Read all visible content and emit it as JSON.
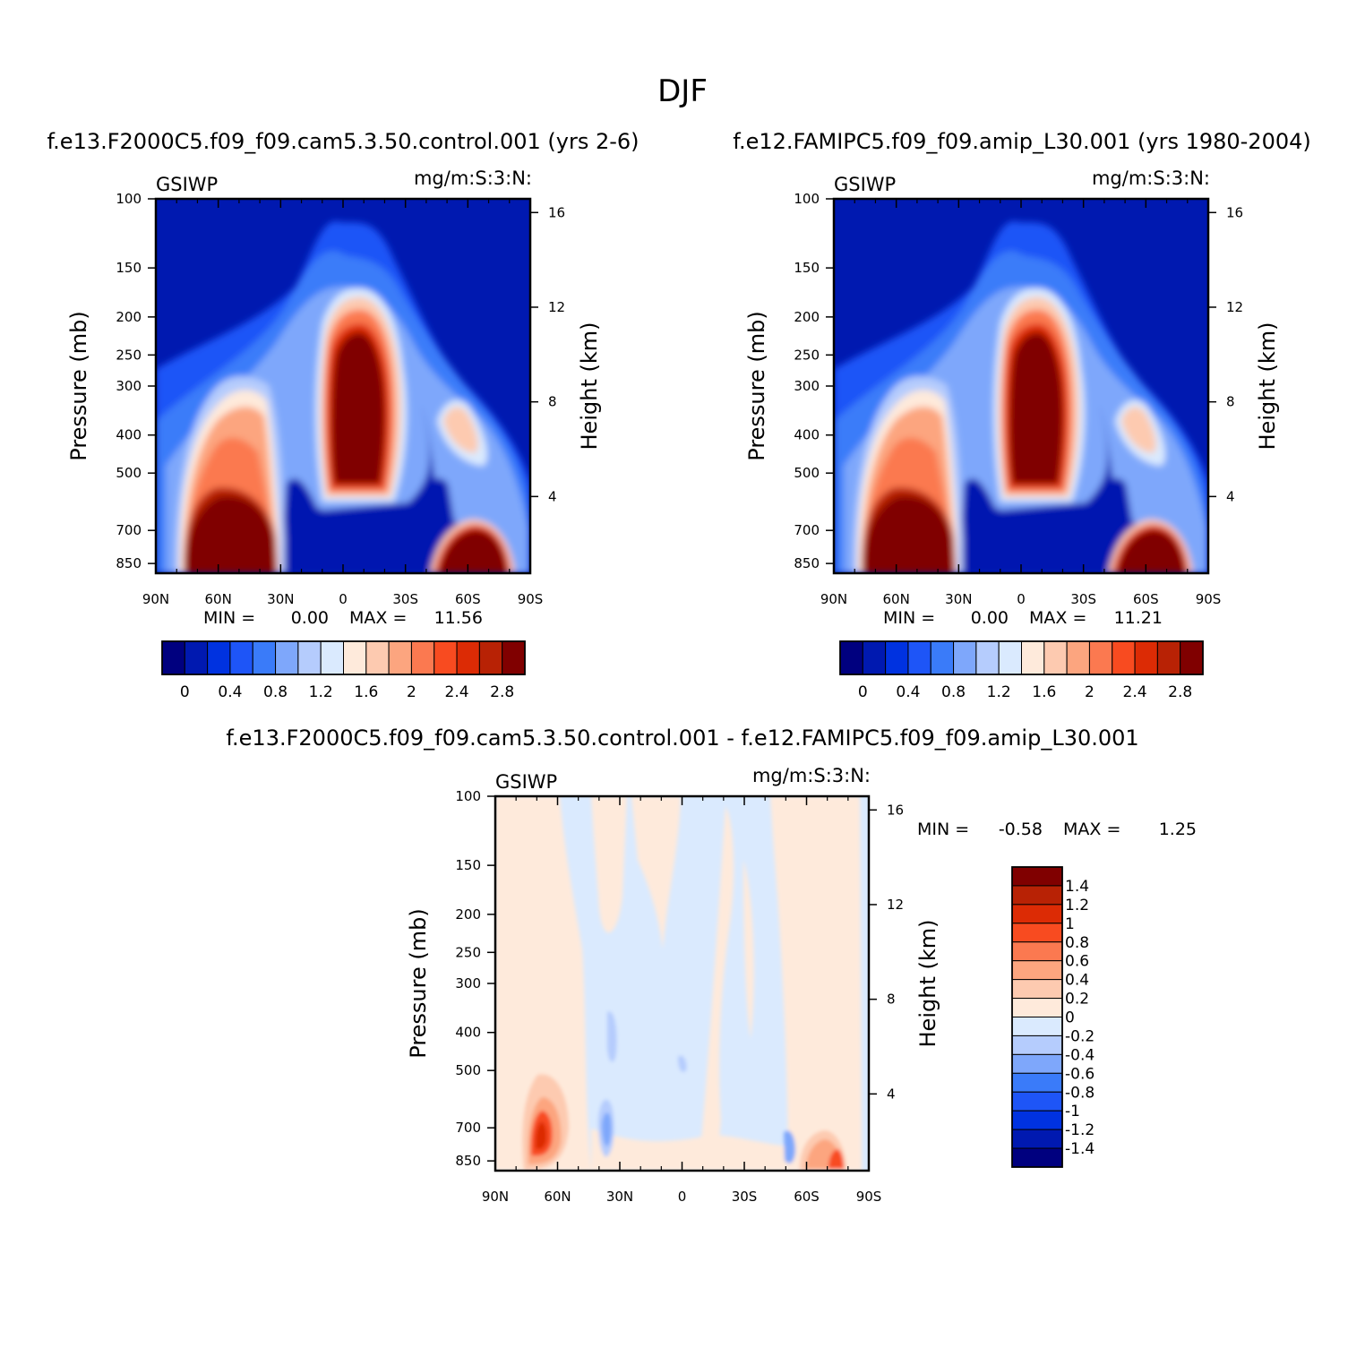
{
  "page_title": "DJF",
  "colors": {
    "scale": [
      "#00007f",
      "#0019b0",
      "#0032e0",
      "#1e55f7",
      "#3a7bf9",
      "#7ea7fb",
      "#b5ccfd",
      "#daeafe",
      "#feeadb",
      "#fdcab0",
      "#fca57f",
      "#fb7950",
      "#f84b20",
      "#dc2b05",
      "#b82205",
      "#800000"
    ]
  },
  "chart_data": [
    {
      "id": "control",
      "type": "heatmap",
      "title": "f.e13.F2000C5.f09_f09.cam5.3.50.control.001 (yrs 2-6)",
      "variable": "GSIWP",
      "units": "mg/m:S:3:N:",
      "ylabel": "Pressure (mb)",
      "y2label": "Height (km)",
      "x_ticks": [
        "90N",
        "60N",
        "30N",
        "0",
        "30S",
        "60S",
        "90S"
      ],
      "y_ticks": [
        "100",
        "150",
        "200",
        "250",
        "300",
        "400",
        "500",
        "700",
        "850"
      ],
      "y2_ticks": [
        "16",
        "12",
        "8",
        "4"
      ],
      "min_label": "MIN =",
      "min_value": "0.00",
      "max_label": "MAX =",
      "max_value": "11.56",
      "colorbar_labels": [
        "0",
        "0.4",
        "0.8",
        "1.2",
        "1.6",
        "2",
        "2.4",
        "2.8"
      ],
      "colorbar_levels": [
        0,
        0.2,
        0.4,
        0.6,
        0.8,
        1.0,
        1.2,
        1.4,
        1.6,
        1.8,
        2.0,
        2.2,
        2.4,
        2.6,
        2.8
      ],
      "colorbar_orientation": "horizontal"
    },
    {
      "id": "amip",
      "type": "heatmap",
      "title": "f.e12.FAMIPC5.f09_f09.amip_L30.001 (yrs 1980-2004)",
      "variable": "GSIWP",
      "units": "mg/m:S:3:N:",
      "ylabel": "Pressure (mb)",
      "y2label": "Height (km)",
      "x_ticks": [
        "90N",
        "60N",
        "30N",
        "0",
        "30S",
        "60S",
        "90S"
      ],
      "y_ticks": [
        "100",
        "150",
        "200",
        "250",
        "300",
        "400",
        "500",
        "700",
        "850"
      ],
      "y2_ticks": [
        "16",
        "12",
        "8",
        "4"
      ],
      "min_label": "MIN =",
      "min_value": "0.00",
      "max_label": "MAX =",
      "max_value": "11.21",
      "colorbar_labels": [
        "0",
        "0.4",
        "0.8",
        "1.2",
        "1.6",
        "2",
        "2.4",
        "2.8"
      ],
      "colorbar_levels": [
        0,
        0.2,
        0.4,
        0.6,
        0.8,
        1.0,
        1.2,
        1.4,
        1.6,
        1.8,
        2.0,
        2.2,
        2.4,
        2.6,
        2.8
      ],
      "colorbar_orientation": "horizontal"
    },
    {
      "id": "diff",
      "type": "heatmap",
      "title": "f.e13.F2000C5.f09_f09.cam5.3.50.control.001 - f.e12.FAMIPC5.f09_f09.amip_L30.001",
      "variable": "GSIWP",
      "units": "mg/m:S:3:N:",
      "ylabel": "Pressure (mb)",
      "y2label": "Height (km)",
      "x_ticks": [
        "90N",
        "60N",
        "30N",
        "0",
        "30S",
        "60S",
        "90S"
      ],
      "y_ticks": [
        "100",
        "150",
        "200",
        "250",
        "300",
        "400",
        "500",
        "700",
        "850"
      ],
      "y2_ticks": [
        "16",
        "12",
        "8",
        "4"
      ],
      "min_label": "MIN =",
      "min_value": "-0.58",
      "max_label": "MAX =",
      "max_value": "1.25",
      "colorbar_labels": [
        "1.4",
        "1.2",
        "1",
        "0.8",
        "0.6",
        "0.4",
        "0.2",
        "0",
        "-0.2",
        "-0.4",
        "-0.6",
        "-0.8",
        "-1",
        "-1.2",
        "-1.4"
      ],
      "colorbar_levels": [
        -1.4,
        -1.2,
        -1.0,
        -0.8,
        -0.6,
        -0.4,
        -0.2,
        0,
        0.2,
        0.4,
        0.6,
        0.8,
        1.0,
        1.2,
        1.4
      ],
      "colorbar_orientation": "vertical"
    }
  ]
}
